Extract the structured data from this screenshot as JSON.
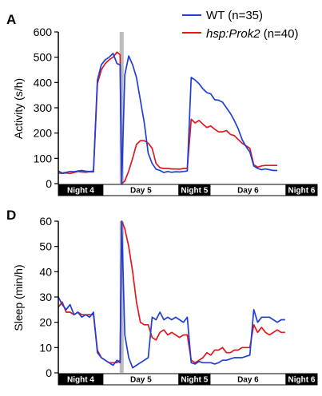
{
  "legend": {
    "position": "top-right",
    "entries": [
      {
        "name_main": "WT",
        "name_suffix": " (n=35)",
        "italic": false,
        "color": "#1f3fd6"
      },
      {
        "name_main": "hsp:Prok2",
        "name_suffix": " (n=40)",
        "italic": true,
        "color": "#e0181f"
      }
    ]
  },
  "colors": {
    "wt": "#1f3fd6",
    "prok2": "#e0181f",
    "heat_shock_bar": "#bdbdbd",
    "night": "#000000",
    "day": "#ffffff"
  },
  "chart_data": [
    {
      "panel": "A",
      "type": "line",
      "ylabel": "Activity (s/h)",
      "ylim": [
        0,
        600
      ],
      "yticks": [
        0,
        100,
        200,
        300,
        400,
        500,
        600
      ],
      "xlim": [
        0,
        65
      ],
      "light_dark_bar": [
        {
          "label": "Night 4",
          "start": 0,
          "end": 10,
          "dark": true
        },
        {
          "label": "Day 5",
          "start": 10,
          "end": 27,
          "dark": false
        },
        {
          "label": "Night 5",
          "start": 27,
          "end": 34,
          "dark": true
        },
        {
          "label": "Day 6",
          "start": 34,
          "end": 51,
          "dark": false
        },
        {
          "label": "Night 6",
          "start": 51,
          "end": 58,
          "dark": true
        }
      ],
      "heat_shock_marker": 16.2,
      "series": [
        {
          "name": "WT",
          "key": "wt",
          "points": [
            [
              0,
              50
            ],
            [
              1,
              42
            ],
            [
              2,
              45
            ],
            [
              3,
              48
            ],
            [
              4,
              47
            ],
            [
              5,
              50
            ],
            [
              6,
              52
            ],
            [
              7,
              49
            ],
            [
              8,
              48
            ],
            [
              9,
              50
            ],
            [
              10,
              410
            ],
            [
              11,
              470
            ],
            [
              12,
              490
            ],
            [
              13,
              500
            ],
            [
              14,
              515
            ],
            [
              15,
              475
            ],
            [
              15.8,
              470
            ],
            [
              16.2,
              0
            ],
            [
              17,
              430
            ],
            [
              18,
              505
            ],
            [
              19,
              470
            ],
            [
              20,
              420
            ],
            [
              21,
              330
            ],
            [
              22,
              240
            ],
            [
              23,
              120
            ],
            [
              24,
              80
            ],
            [
              25,
              57
            ],
            [
              26,
              52
            ],
            [
              27,
              44
            ],
            [
              28,
              48
            ],
            [
              29,
              45
            ],
            [
              30,
              47
            ],
            [
              31,
              46
            ],
            [
              32,
              48
            ],
            [
              33,
              50
            ],
            [
              34,
              420
            ],
            [
              35,
              410
            ],
            [
              36,
              395
            ],
            [
              37,
              375
            ],
            [
              38,
              360
            ],
            [
              39,
              355
            ],
            [
              40,
              332
            ],
            [
              41,
              330
            ],
            [
              42,
              322
            ],
            [
              43,
              300
            ],
            [
              44,
              278
            ],
            [
              45,
              250
            ],
            [
              46,
              218
            ],
            [
              47,
              175
            ],
            [
              48,
              147
            ],
            [
              49,
              125
            ],
            [
              50,
              70
            ],
            [
              51,
              60
            ],
            [
              52,
              55
            ],
            [
              53,
              58
            ],
            [
              54,
              55
            ],
            [
              55,
              52
            ],
            [
              56,
              52
            ]
          ]
        },
        {
          "name": "hsp:Prok2",
          "key": "prok2",
          "points": [
            [
              0,
              42
            ],
            [
              1,
              40
            ],
            [
              2,
              42
            ],
            [
              3,
              40
            ],
            [
              4,
              44
            ],
            [
              5,
              48
            ],
            [
              6,
              46
            ],
            [
              7,
              45
            ],
            [
              8,
              47
            ],
            [
              9,
              46
            ],
            [
              10,
              395
            ],
            [
              11,
              450
            ],
            [
              12,
              475
            ],
            [
              13,
              490
            ],
            [
              14,
              500
            ],
            [
              15,
              520
            ],
            [
              15.8,
              510
            ],
            [
              16.2,
              0
            ],
            [
              17,
              10
            ],
            [
              18,
              50
            ],
            [
              19,
              100
            ],
            [
              20,
              155
            ],
            [
              21,
              170
            ],
            [
              22,
              170
            ],
            [
              23,
              160
            ],
            [
              24,
              140
            ],
            [
              25,
              80
            ],
            [
              26,
              63
            ],
            [
              27,
              60
            ],
            [
              28,
              60
            ],
            [
              29,
              58
            ],
            [
              30,
              58
            ],
            [
              31,
              57
            ],
            [
              32,
              60
            ],
            [
              33,
              60
            ],
            [
              34,
              255
            ],
            [
              35,
              240
            ],
            [
              36,
              250
            ],
            [
              37,
              235
            ],
            [
              38,
              222
            ],
            [
              39,
              228
            ],
            [
              40,
              215
            ],
            [
              41,
              205
            ],
            [
              42,
              205
            ],
            [
              43,
              210
            ],
            [
              44,
              195
            ],
            [
              45,
              190
            ],
            [
              46,
              175
            ],
            [
              47,
              160
            ],
            [
              48,
              150
            ],
            [
              49,
              140
            ],
            [
              50,
              75
            ],
            [
              51,
              65
            ],
            [
              52,
              70
            ],
            [
              53,
              72
            ],
            [
              54,
              72
            ],
            [
              55,
              72
            ],
            [
              56,
              72
            ]
          ]
        }
      ]
    },
    {
      "panel": "D",
      "type": "line",
      "ylabel": "Sleep (min/h)",
      "ylim": [
        0,
        60
      ],
      "yticks": [
        0,
        10,
        20,
        30,
        40,
        50,
        60
      ],
      "xlim": [
        0,
        65
      ],
      "light_dark_bar": [
        {
          "label": "Night 4",
          "start": 0,
          "end": 10,
          "dark": true
        },
        {
          "label": "Day 5",
          "start": 10,
          "end": 27,
          "dark": false
        },
        {
          "label": "Night 5",
          "start": 27,
          "end": 34,
          "dark": true
        },
        {
          "label": "Day 6",
          "start": 34,
          "end": 51,
          "dark": false
        },
        {
          "label": "Night 6",
          "start": 51,
          "end": 58,
          "dark": true
        }
      ],
      "heat_shock_marker": 16.2,
      "series": [
        {
          "name": "WT",
          "key": "wt",
          "points": [
            [
              0,
              30
            ],
            [
              1,
              27
            ],
            [
              2,
              25
            ],
            [
              3,
              27
            ],
            [
              4,
              23
            ],
            [
              5,
              24
            ],
            [
              6,
              22
            ],
            [
              7,
              23
            ],
            [
              8,
              22
            ],
            [
              9,
              24
            ],
            [
              10,
              8
            ],
            [
              11,
              6
            ],
            [
              12,
              5
            ],
            [
              13,
              4
            ],
            [
              14,
              3
            ],
            [
              15,
              5
            ],
            [
              15.8,
              4
            ],
            [
              16.2,
              60
            ],
            [
              17,
              15
            ],
            [
              18,
              6
            ],
            [
              19,
              2
            ],
            [
              20,
              3
            ],
            [
              21,
              4
            ],
            [
              22,
              5
            ],
            [
              23,
              6
            ],
            [
              24,
              22
            ],
            [
              25,
              21
            ],
            [
              26,
              24
            ],
            [
              27,
              21
            ],
            [
              28,
              22
            ],
            [
              29,
              21
            ],
            [
              30,
              22
            ],
            [
              31,
              21
            ],
            [
              32,
              20
            ],
            [
              33,
              22
            ],
            [
              34,
              4
            ],
            [
              35,
              3.5
            ],
            [
              36,
              4.5
            ],
            [
              37,
              4
            ],
            [
              38,
              4
            ],
            [
              39,
              4
            ],
            [
              40,
              3.5
            ],
            [
              41,
              4
            ],
            [
              42,
              5
            ],
            [
              43,
              5
            ],
            [
              44,
              5.5
            ],
            [
              45,
              6
            ],
            [
              46,
              6
            ],
            [
              47,
              6
            ],
            [
              48,
              6.5
            ],
            [
              49,
              7
            ],
            [
              50,
              25
            ],
            [
              51,
              20
            ],
            [
              52,
              22
            ],
            [
              53,
              22
            ],
            [
              54,
              22
            ],
            [
              55,
              21
            ],
            [
              56,
              20
            ],
            [
              57,
              21
            ],
            [
              58,
              21
            ]
          ]
        },
        {
          "name": "hsp:Prok2",
          "key": "prok2",
          "points": [
            [
              0,
              26
            ],
            [
              1,
              28
            ],
            [
              2,
              24
            ],
            [
              3,
              24
            ],
            [
              4,
              23
            ],
            [
              5,
              24
            ],
            [
              6,
              23
            ],
            [
              7,
              23
            ],
            [
              8,
              23
            ],
            [
              9,
              23
            ],
            [
              10,
              9
            ],
            [
              11,
              6
            ],
            [
              12,
              5
            ],
            [
              13,
              4
            ],
            [
              14,
              4
            ],
            [
              15,
              4
            ],
            [
              15.8,
              5
            ],
            [
              16.2,
              60
            ],
            [
              17,
              57
            ],
            [
              18,
              50
            ],
            [
              19,
              40
            ],
            [
              20,
              28
            ],
            [
              21,
              20
            ],
            [
              22,
              19
            ],
            [
              23,
              19
            ],
            [
              24,
              14
            ],
            [
              25,
              13
            ],
            [
              26,
              16
            ],
            [
              27,
              17
            ],
            [
              28,
              15
            ],
            [
              29,
              16
            ],
            [
              30,
              15
            ],
            [
              31,
              14
            ],
            [
              32,
              15
            ],
            [
              33,
              15
            ],
            [
              34,
              5
            ],
            [
              35,
              4
            ],
            [
              36,
              5
            ],
            [
              37,
              6
            ],
            [
              38,
              8
            ],
            [
              39,
              7
            ],
            [
              40,
              9
            ],
            [
              41,
              9
            ],
            [
              42,
              10
            ],
            [
              43,
              8
            ],
            [
              44,
              8
            ],
            [
              45,
              9
            ],
            [
              46,
              9
            ],
            [
              47,
              10
            ],
            [
              48,
              10
            ],
            [
              49,
              10
            ],
            [
              50,
              19
            ],
            [
              51,
              16
            ],
            [
              52,
              18
            ],
            [
              53,
              16
            ],
            [
              54,
              15
            ],
            [
              55,
              16
            ],
            [
              56,
              17
            ],
            [
              57,
              16
            ],
            [
              58,
              16
            ]
          ]
        }
      ]
    }
  ]
}
